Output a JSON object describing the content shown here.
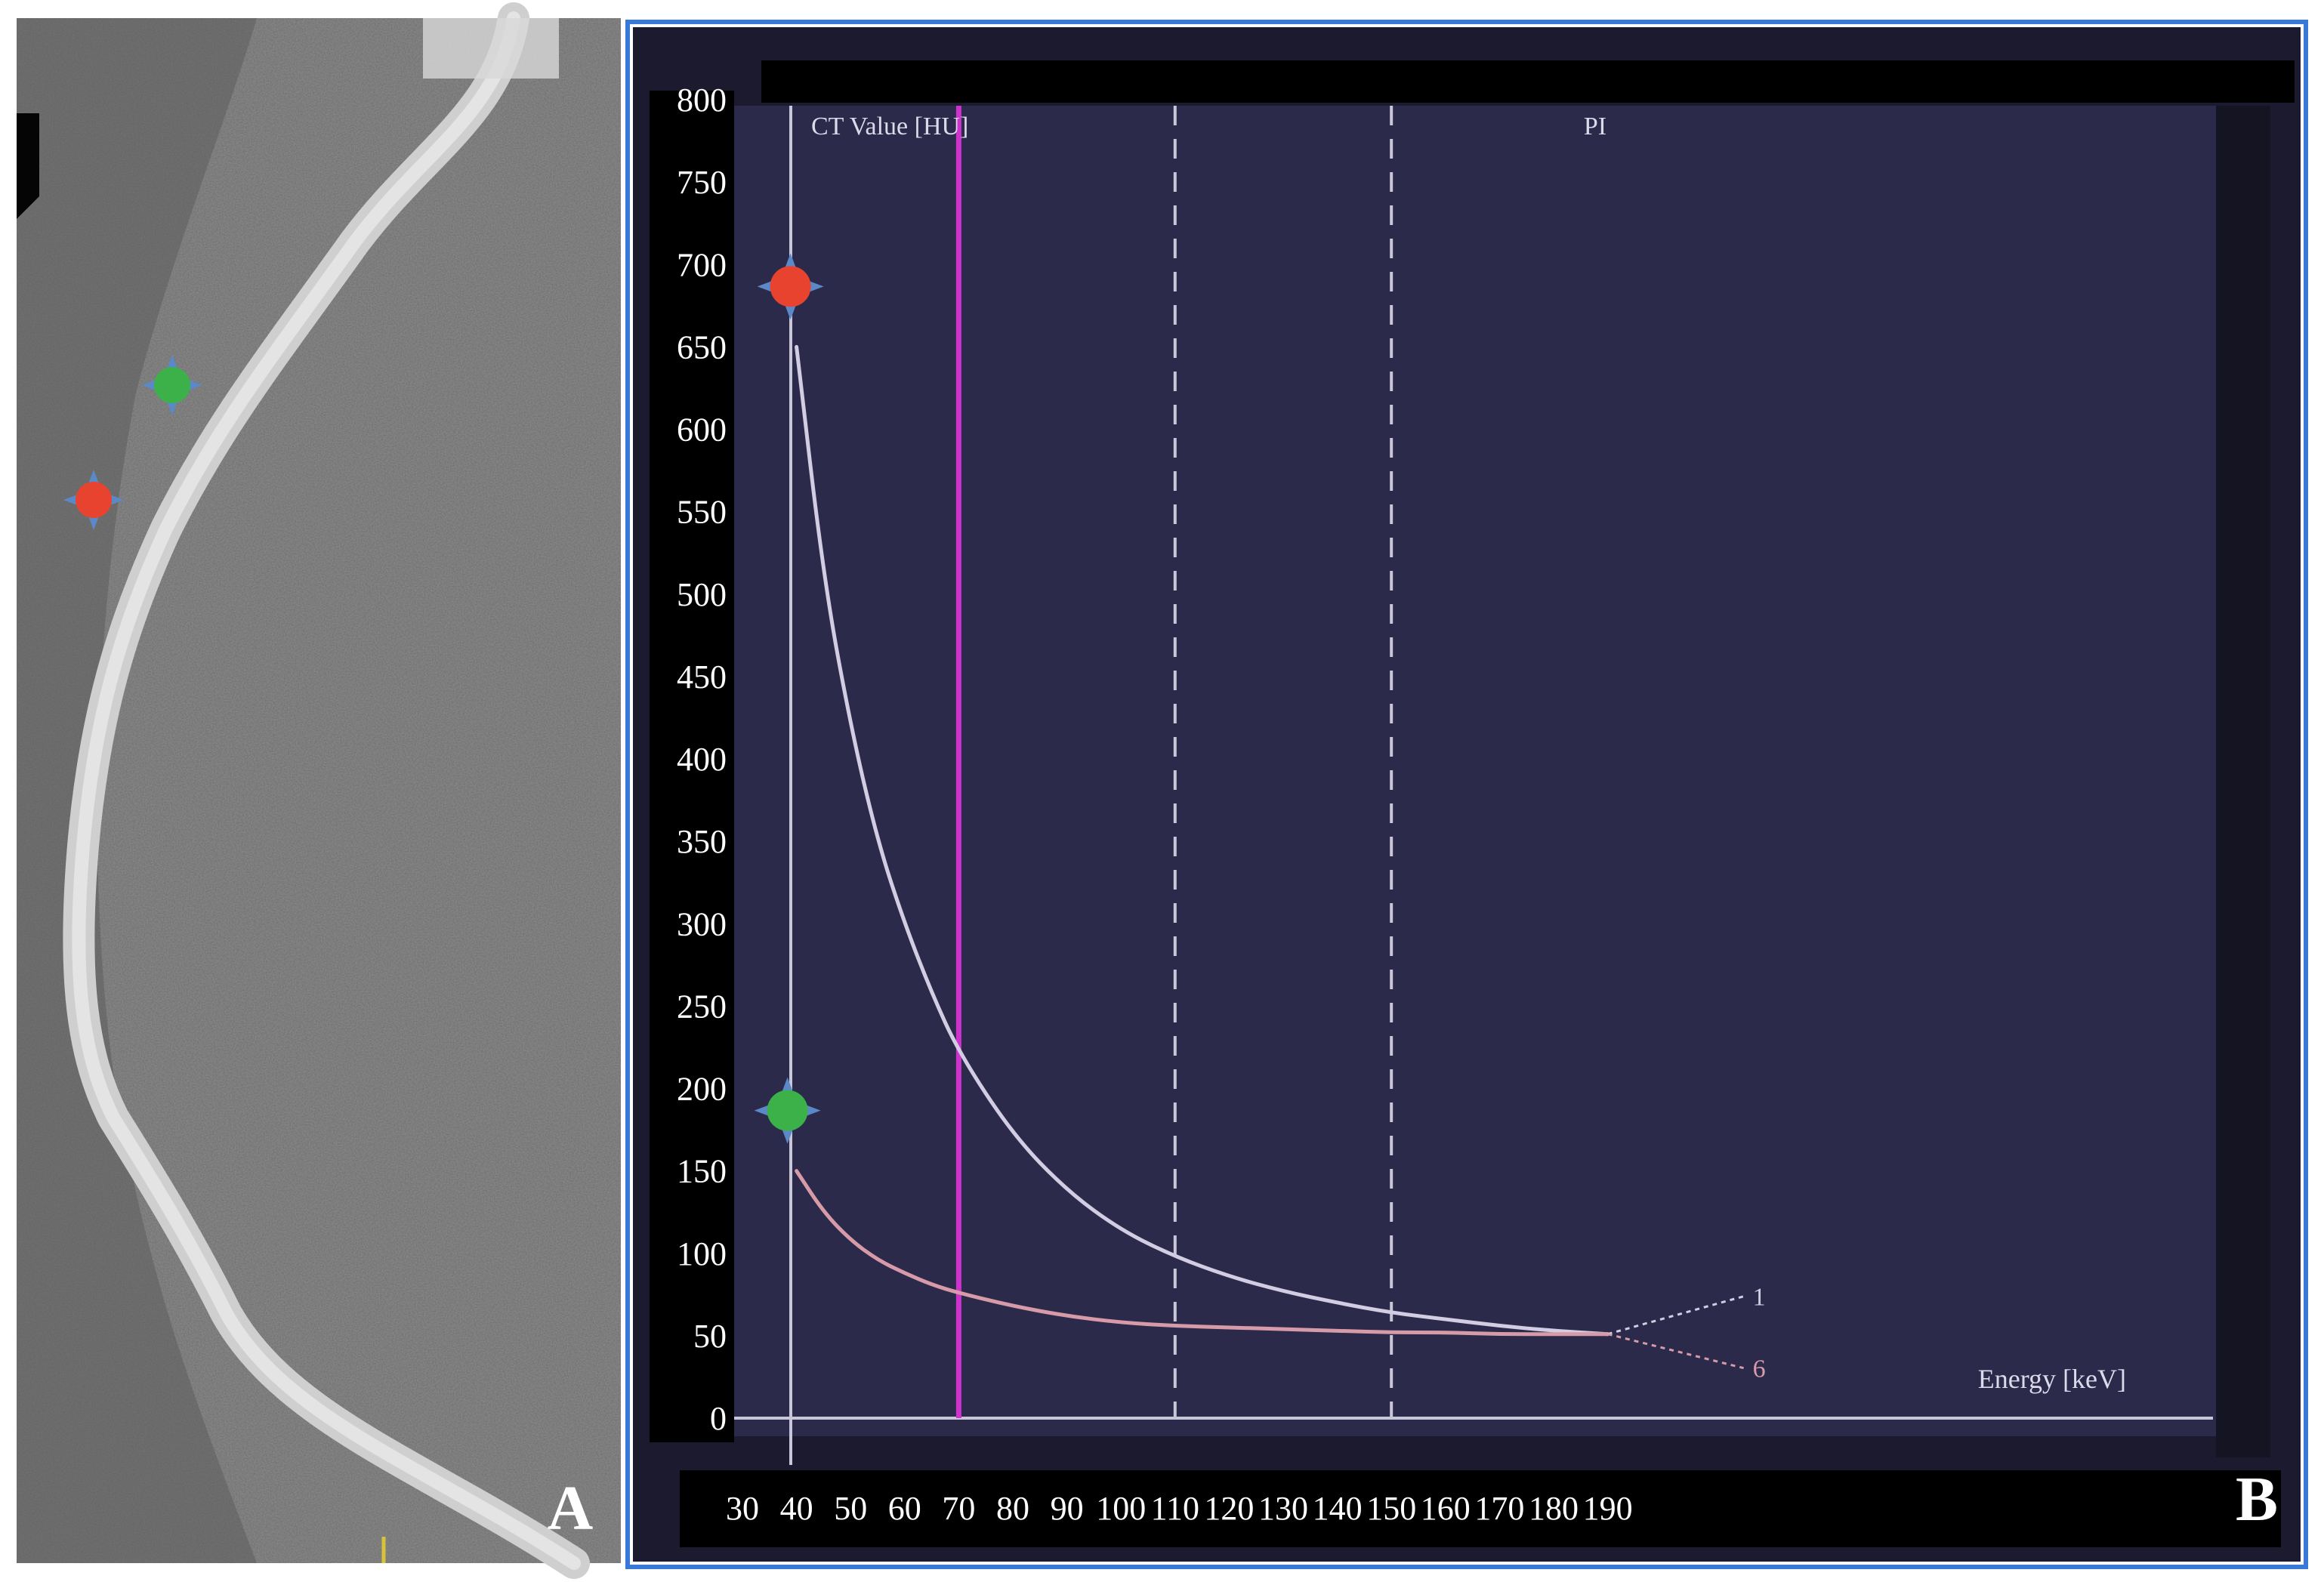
{
  "panel_labels": {
    "left": "A",
    "right": "B"
  },
  "colors": {
    "plot_background": "#2b2a4a",
    "frame": "#1b1a2e",
    "accent_border": "#3a78d8",
    "marker_line": "#cc33cc",
    "curve_1": "#d2cde3",
    "curve_6": "#d79aa8",
    "marker_red": "#e8432e",
    "marker_green": "#3cb14a",
    "marker_halo": "#5b88c6"
  },
  "chart_data": {
    "type": "line",
    "title": "",
    "ylabel": "CT Value [HU]",
    "xlabel": "Energy [keV]",
    "header_right": "PI",
    "xlim": [
      30,
      190
    ],
    "ylim": [
      0,
      800
    ],
    "x_ticks": [
      30,
      40,
      50,
      60,
      70,
      80,
      90,
      100,
      110,
      120,
      130,
      140,
      150,
      160,
      170,
      180,
      190
    ],
    "y_ticks": [
      0,
      50,
      100,
      150,
      200,
      250,
      300,
      350,
      400,
      450,
      500,
      550,
      600,
      650,
      700,
      750,
      800
    ],
    "grid": false,
    "vertical_marker": 70,
    "dashed_lines": [
      110,
      150
    ],
    "series": [
      {
        "name": "1",
        "x": [
          40,
          45,
          50,
          55,
          60,
          65,
          70,
          80,
          90,
          100,
          110,
          120,
          130,
          140,
          150,
          160,
          170,
          180,
          190
        ],
        "values": [
          650,
          510,
          420,
          350,
          300,
          258,
          222,
          172,
          138,
          114,
          98,
          86,
          77,
          70,
          64,
          60,
          56,
          53,
          51
        ]
      },
      {
        "name": "6",
        "x": [
          40,
          45,
          50,
          55,
          60,
          65,
          70,
          80,
          90,
          100,
          110,
          120,
          130,
          140,
          150,
          160,
          170,
          180,
          190
        ],
        "values": [
          150,
          125,
          108,
          96,
          88,
          81,
          76,
          68,
          62,
          58,
          56,
          55,
          54,
          53,
          52,
          52,
          51,
          51,
          51
        ]
      }
    ]
  }
}
